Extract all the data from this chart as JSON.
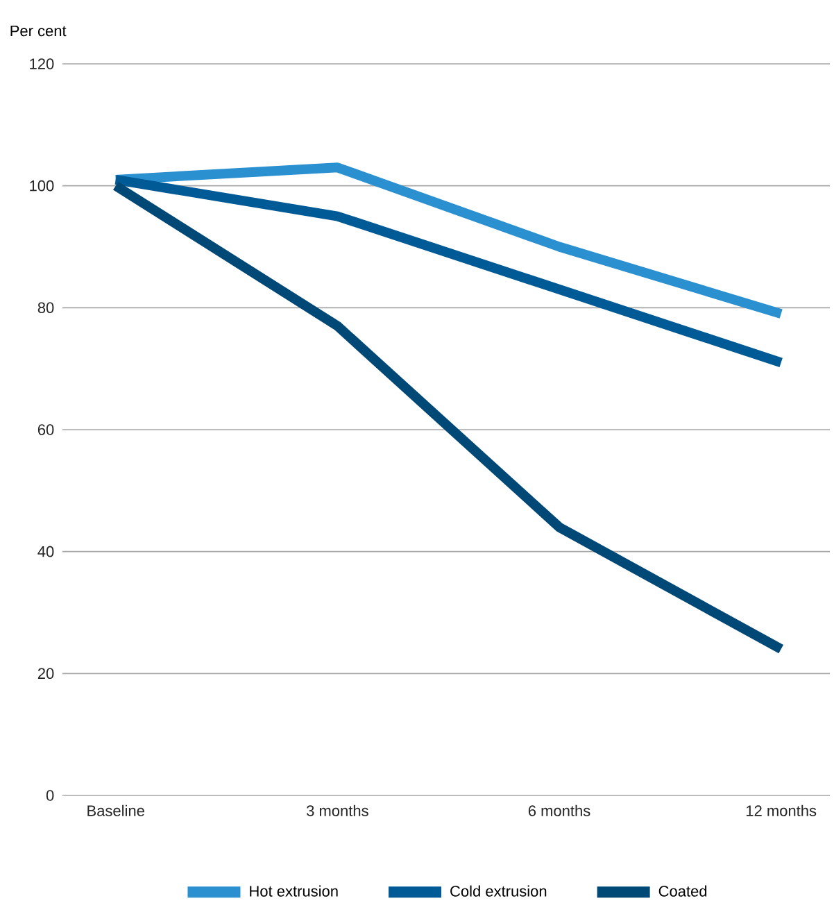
{
  "chart_data": {
    "type": "line",
    "ylabel": "Per cent",
    "categories": [
      "Baseline",
      "3 months",
      "6 months",
      "12 months"
    ],
    "series": [
      {
        "name": "Hot extrusion",
        "color": "#2b90d0",
        "values": [
          101,
          103,
          90,
          79
        ]
      },
      {
        "name": "Cold extrusion",
        "color": "#005a96",
        "values": [
          101,
          95,
          83,
          71
        ]
      },
      {
        "name": "Coated",
        "color": "#004876",
        "values": [
          100,
          77,
          44,
          24
        ]
      }
    ],
    "ylim": [
      0,
      120
    ],
    "yticks": [
      0,
      20,
      40,
      60,
      80,
      100,
      120
    ],
    "grid": "y",
    "legend": "bottom",
    "marker": "none",
    "line_style": "solid"
  }
}
